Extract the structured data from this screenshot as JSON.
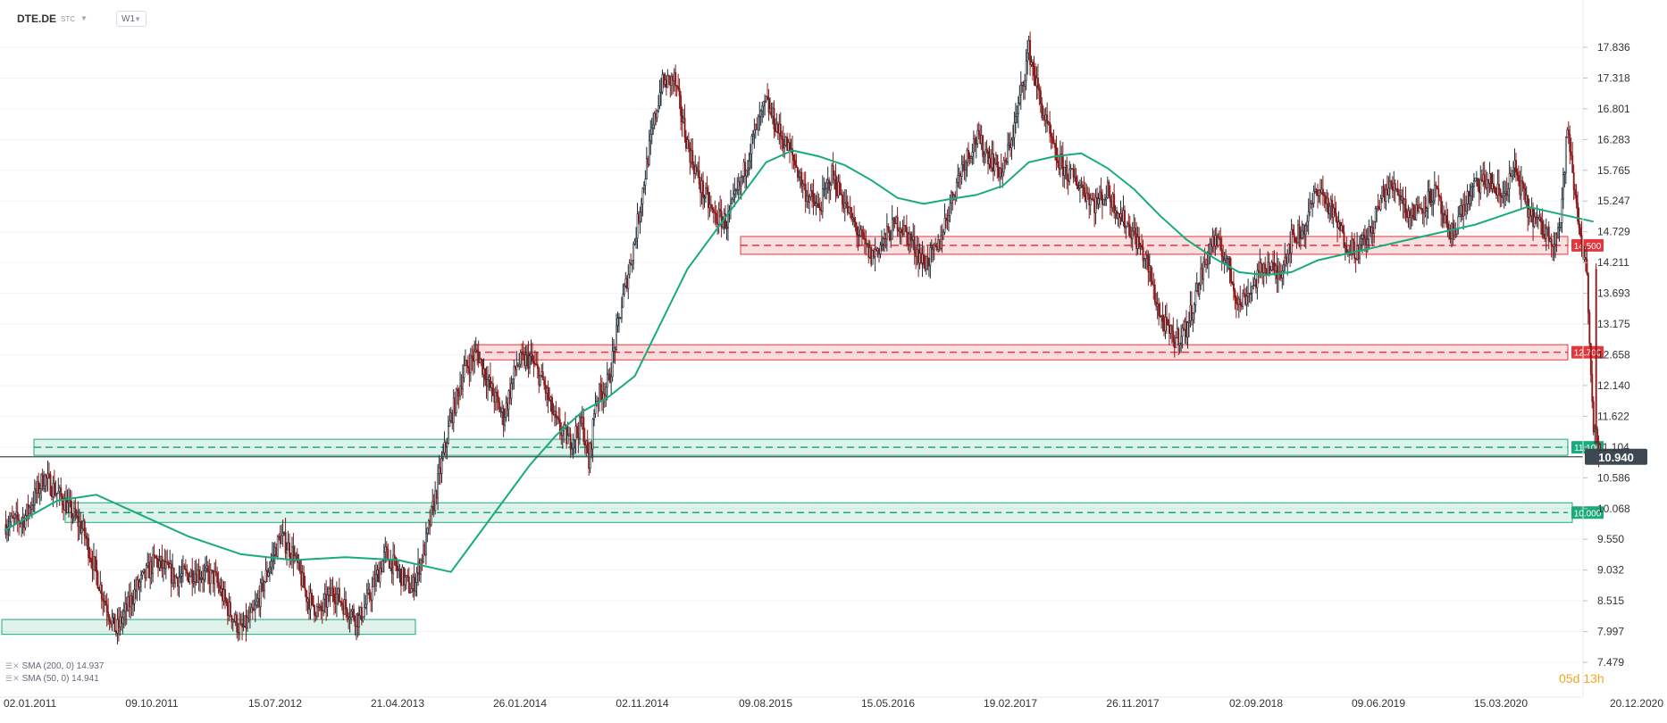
{
  "header": {
    "symbol": "DTE.DE",
    "symbol_sub": "STC",
    "timeframe": "W1"
  },
  "countdown": "05d 13h",
  "legend": [
    {
      "label": "SMA (200, 0) 14.937"
    },
    {
      "label": "SMA (50, 0) 14.941"
    }
  ],
  "colors": {
    "resistance": "#e2373d",
    "support": "#1aab7a",
    "sma": "#1aab7a",
    "candle_up": "#1f2a33",
    "candle_down": "#8b1a1a",
    "current_price": "#3d4852"
  },
  "chart_data": {
    "type": "candlestick",
    "y_axis": {
      "ticks": [
        "17.836",
        "17.318",
        "16.801",
        "16.283",
        "15.765",
        "15.247",
        "14.729",
        "14.211",
        "13.693",
        "13.175",
        "12.658",
        "12.140",
        "11.622",
        "11.104",
        "10.586",
        "10.068",
        "9.550",
        "9.032",
        "8.515",
        "7.997",
        "7.479"
      ],
      "range": [
        7.479,
        17.836
      ]
    },
    "x_axis": {
      "ticks": [
        "02.01.2011",
        "09.10.2011",
        "15.07.2012",
        "21.04.2013",
        "26.01.2014",
        "02.11.2014",
        "09.08.2015",
        "15.05.2016",
        "19.02.2017",
        "26.11.2017",
        "02.09.2018",
        "09.06.2019",
        "15.03.2020",
        "20.12.2020"
      ]
    },
    "levels": [
      {
        "price": 14.5,
        "label": "14.500",
        "kind": "resistance"
      },
      {
        "price": 12.7,
        "label": "12.700",
        "kind": "resistance"
      },
      {
        "price": 11.1,
        "label": "11.100",
        "kind": "support"
      },
      {
        "price": 10.0,
        "label": "10.000",
        "kind": "support"
      }
    ],
    "bottom_zone": [
      7.95,
      8.2
    ],
    "current_price": {
      "value": 10.94,
      "label": "10.940"
    },
    "series": [
      {
        "name": "SMA (200, 0) 14.937",
        "type": "line"
      },
      {
        "name": "SMA (50, 0) 14.941",
        "type": "line"
      }
    ],
    "price_path": [
      [
        0,
        9.8
      ],
      [
        15,
        9.9
      ],
      [
        30,
        10.6
      ],
      [
        45,
        10.2
      ],
      [
        60,
        9.7
      ],
      [
        75,
        8.6
      ],
      [
        85,
        8.0
      ],
      [
        100,
        8.7
      ],
      [
        115,
        9.2
      ],
      [
        130,
        8.9
      ],
      [
        145,
        9.0
      ],
      [
        160,
        8.9
      ],
      [
        170,
        8.4
      ],
      [
        180,
        8.0
      ],
      [
        190,
        8.3
      ],
      [
        200,
        9.0
      ],
      [
        210,
        9.6
      ],
      [
        220,
        9.3
      ],
      [
        230,
        8.6
      ],
      [
        240,
        8.3
      ],
      [
        250,
        8.7
      ],
      [
        260,
        8.4
      ],
      [
        270,
        8.2
      ],
      [
        280,
        8.7
      ],
      [
        290,
        9.3
      ],
      [
        300,
        9.0
      ],
      [
        310,
        8.7
      ],
      [
        320,
        9.4
      ],
      [
        330,
        10.5
      ],
      [
        340,
        11.6
      ],
      [
        350,
        12.4
      ],
      [
        360,
        12.7
      ],
      [
        370,
        12.1
      ],
      [
        380,
        11.6
      ],
      [
        390,
        12.5
      ],
      [
        400,
        12.6
      ],
      [
        410,
        12.2
      ],
      [
        420,
        11.5
      ],
      [
        430,
        11.2
      ],
      [
        440,
        11.5
      ],
      [
        445,
        10.8
      ],
      [
        450,
        11.9
      ],
      [
        460,
        12.2
      ],
      [
        470,
        13.5
      ],
      [
        480,
        14.6
      ],
      [
        490,
        16.0
      ],
      [
        500,
        17.2
      ],
      [
        510,
        17.3
      ],
      [
        520,
        16.2
      ],
      [
        530,
        15.5
      ],
      [
        540,
        15.0
      ],
      [
        550,
        14.9
      ],
      [
        560,
        15.5
      ],
      [
        570,
        16.3
      ],
      [
        580,
        16.9
      ],
      [
        590,
        16.4
      ],
      [
        600,
        16.0
      ],
      [
        610,
        15.4
      ],
      [
        620,
        15.1
      ],
      [
        630,
        15.7
      ],
      [
        640,
        15.2
      ],
      [
        650,
        14.7
      ],
      [
        660,
        14.3
      ],
      [
        670,
        14.6
      ],
      [
        680,
        14.9
      ],
      [
        690,
        14.6
      ],
      [
        700,
        14.2
      ],
      [
        710,
        14.4
      ],
      [
        720,
        15.2
      ],
      [
        730,
        15.9
      ],
      [
        740,
        16.3
      ],
      [
        750,
        16.0
      ],
      [
        760,
        15.7
      ],
      [
        770,
        16.6
      ],
      [
        780,
        17.8
      ],
      [
        790,
        16.8
      ],
      [
        800,
        16.0
      ],
      [
        810,
        15.7
      ],
      [
        820,
        15.5
      ],
      [
        830,
        15.2
      ],
      [
        840,
        15.4
      ],
      [
        850,
        15.0
      ],
      [
        860,
        14.7
      ],
      [
        870,
        14.2
      ],
      [
        880,
        13.3
      ],
      [
        890,
        12.9
      ],
      [
        900,
        13.1
      ],
      [
        910,
        13.9
      ],
      [
        920,
        14.6
      ],
      [
        930,
        14.3
      ],
      [
        940,
        13.5
      ],
      [
        950,
        13.8
      ],
      [
        960,
        14.2
      ],
      [
        970,
        14.0
      ],
      [
        980,
        14.6
      ],
      [
        990,
        14.8
      ],
      [
        1000,
        15.5
      ],
      [
        1010,
        15.1
      ],
      [
        1020,
        14.6
      ],
      [
        1030,
        14.4
      ],
      [
        1040,
        14.7
      ],
      [
        1050,
        15.4
      ],
      [
        1060,
        15.5
      ],
      [
        1070,
        15.0
      ],
      [
        1080,
        15.2
      ],
      [
        1090,
        15.4
      ],
      [
        1100,
        14.6
      ],
      [
        1110,
        15.1
      ],
      [
        1120,
        15.5
      ],
      [
        1130,
        15.6
      ],
      [
        1140,
        15.3
      ],
      [
        1150,
        15.8
      ],
      [
        1160,
        15.1
      ],
      [
        1170,
        14.8
      ],
      [
        1180,
        14.6
      ],
      [
        1185,
        14.9
      ],
      [
        1190,
        16.5
      ],
      [
        1195,
        15.5
      ],
      [
        1200,
        14.7
      ],
      [
        1205,
        14.0
      ],
      [
        1210,
        11.4
      ],
      [
        1214,
        10.94
      ]
    ],
    "sma200_path": [
      [
        0,
        9.7
      ],
      [
        40,
        10.2
      ],
      [
        70,
        10.3
      ],
      [
        100,
        10.0
      ],
      [
        140,
        9.6
      ],
      [
        180,
        9.3
      ],
      [
        220,
        9.2
      ],
      [
        260,
        9.25
      ],
      [
        300,
        9.2
      ],
      [
        320,
        9.1
      ],
      [
        340,
        9.0
      ],
      [
        360,
        9.6
      ],
      [
        380,
        10.2
      ],
      [
        400,
        10.8
      ],
      [
        420,
        11.3
      ],
      [
        440,
        11.7
      ],
      [
        460,
        11.95
      ],
      [
        480,
        12.3
      ],
      [
        500,
        13.2
      ],
      [
        520,
        14.1
      ],
      [
        540,
        14.7
      ],
      [
        560,
        15.3
      ],
      [
        580,
        15.9
      ],
      [
        600,
        16.1
      ],
      [
        620,
        16.0
      ],
      [
        640,
        15.85
      ],
      [
        660,
        15.6
      ],
      [
        680,
        15.3
      ],
      [
        700,
        15.2
      ],
      [
        720,
        15.28
      ],
      [
        740,
        15.35
      ],
      [
        760,
        15.5
      ],
      [
        780,
        15.9
      ],
      [
        800,
        16.0
      ],
      [
        820,
        16.05
      ],
      [
        840,
        15.8
      ],
      [
        860,
        15.45
      ],
      [
        880,
        15.0
      ],
      [
        900,
        14.6
      ],
      [
        920,
        14.3
      ],
      [
        940,
        14.05
      ],
      [
        960,
        14.0
      ],
      [
        980,
        14.05
      ],
      [
        1000,
        14.25
      ],
      [
        1020,
        14.35
      ],
      [
        1040,
        14.45
      ],
      [
        1060,
        14.55
      ],
      [
        1080,
        14.65
      ],
      [
        1100,
        14.75
      ],
      [
        1120,
        14.85
      ],
      [
        1140,
        15.0
      ],
      [
        1160,
        15.15
      ],
      [
        1180,
        15.05
      ],
      [
        1200,
        14.95
      ],
      [
        1210,
        14.9
      ]
    ]
  }
}
